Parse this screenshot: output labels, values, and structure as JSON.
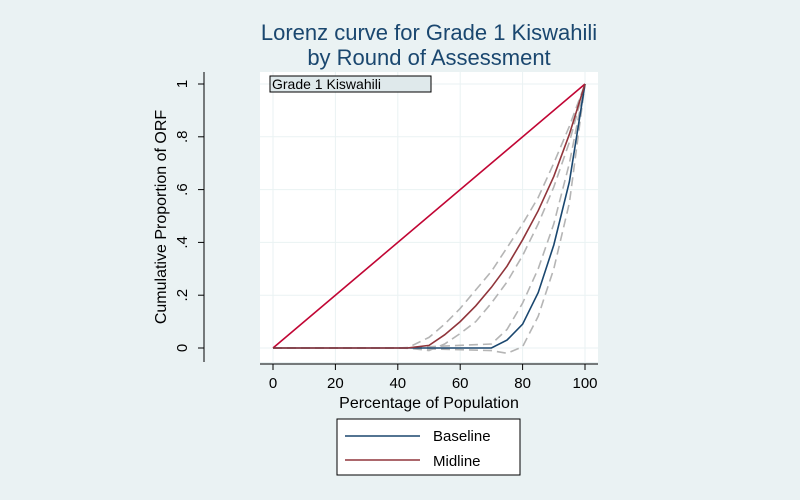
{
  "chart_data": {
    "type": "line",
    "title": [
      "Lorenz curve for Grade 1 Kiswahili",
      "by Round of Assessment"
    ],
    "panel_label": "Grade 1 Kiswahili",
    "xlabel": "Percentage of Population",
    "ylabel": "Cumulative Proportion of ORF",
    "xlim": [
      0,
      100
    ],
    "ylim": [
      0,
      1
    ],
    "xticks": [
      0,
      20,
      40,
      60,
      80,
      100
    ],
    "xtick_labels": [
      "0",
      "20",
      "40",
      "60",
      "80",
      "100"
    ],
    "yticks": [
      0,
      0.2,
      0.4,
      0.6,
      0.8,
      1
    ],
    "ytick_labels": [
      "0",
      ".2",
      ".4",
      ".6",
      ".8",
      "1"
    ],
    "grid": true,
    "legend_position": "bottom",
    "equality_line": {
      "x": [
        0,
        100
      ],
      "y": [
        0,
        1
      ],
      "color": "#c10534"
    },
    "series": [
      {
        "name": "Baseline",
        "color": "#1a476f",
        "x": [
          0,
          40,
          70,
          75,
          80,
          85,
          90,
          95,
          100
        ],
        "y": [
          0,
          0,
          0,
          0.03,
          0.09,
          0.21,
          0.39,
          0.63,
          1.0
        ],
        "ci_lower": [
          0,
          0,
          -0.01,
          -0.02,
          0.005,
          0.12,
          0.3,
          0.55,
          1.0
        ],
        "ci_upper": [
          0,
          0,
          0.015,
          0.07,
          0.17,
          0.3,
          0.47,
          0.7,
          1.0
        ]
      },
      {
        "name": "Midline",
        "color": "#90353b",
        "x": [
          0,
          43,
          50,
          55,
          60,
          65,
          70,
          75,
          80,
          85,
          90,
          95,
          100
        ],
        "y": [
          0,
          0,
          0.01,
          0.05,
          0.1,
          0.16,
          0.23,
          0.31,
          0.41,
          0.52,
          0.65,
          0.81,
          1.0
        ],
        "ci_lower": [
          0,
          0,
          -0.01,
          0.015,
          0.055,
          0.1,
          0.17,
          0.25,
          0.35,
          0.47,
          0.61,
          0.78,
          1.0
        ],
        "ci_upper": [
          0,
          0,
          0.04,
          0.09,
          0.15,
          0.22,
          0.29,
          0.38,
          0.47,
          0.57,
          0.7,
          0.84,
          1.0
        ]
      }
    ],
    "ci_color": "#b5b5b5"
  }
}
